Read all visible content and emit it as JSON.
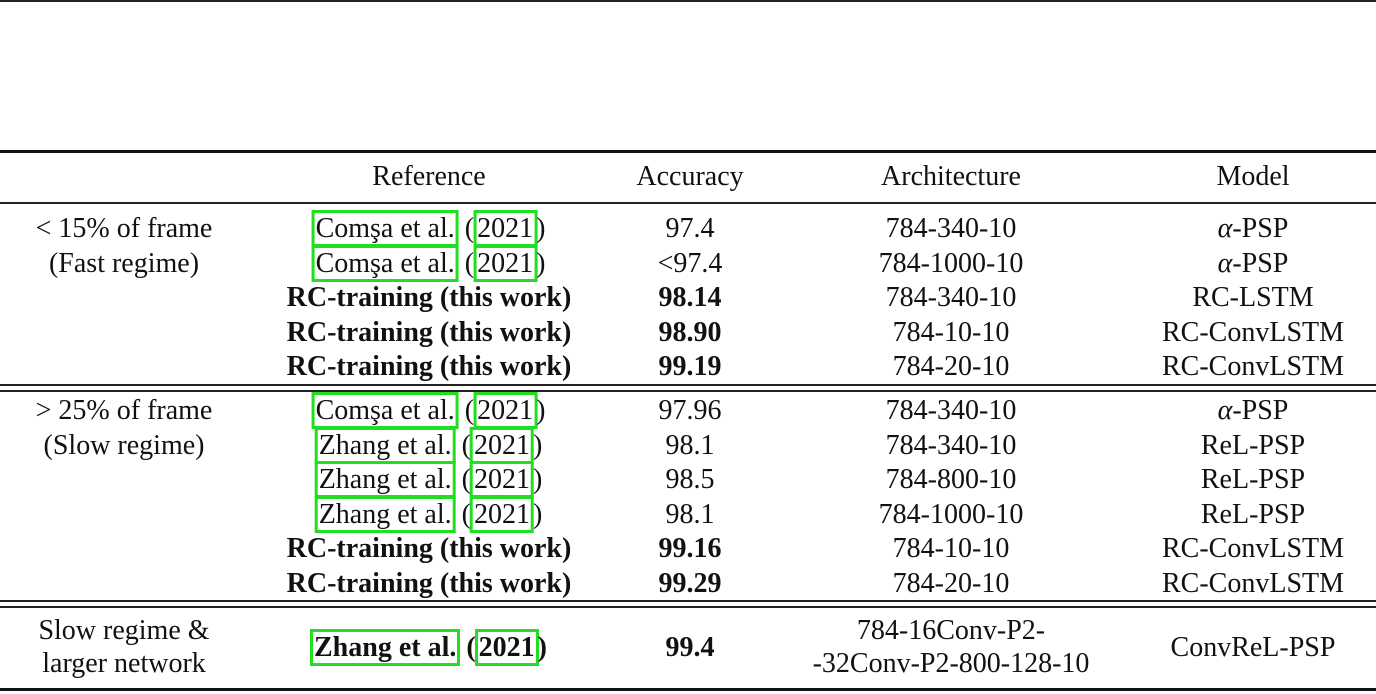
{
  "table": {
    "headers": [
      "Reference",
      "Accuracy",
      "Architecture",
      "Model"
    ],
    "groups": [
      {
        "label_lines": [
          "< 15% of frame",
          "(Fast regime)"
        ],
        "rows": [
          {
            "ref_author": "Comşa et al.",
            "ref_year": "2021",
            "is_citation": true,
            "bold": false,
            "accuracy": "97.4",
            "architecture": "784-340-10",
            "model": "α-PSP"
          },
          {
            "ref_author": "Comşa et al.",
            "ref_year": "2021",
            "is_citation": true,
            "bold": false,
            "accuracy": "<97.4",
            "architecture": "784-1000-10",
            "model": "α-PSP"
          },
          {
            "ref_text": "RC-training (this work)",
            "is_citation": false,
            "bold": true,
            "accuracy": "98.14",
            "architecture": "784-340-10",
            "model": "RC-LSTM"
          },
          {
            "ref_text": "RC-training (this work)",
            "is_citation": false,
            "bold": true,
            "accuracy": "98.90",
            "architecture": "784-10-10",
            "model": "RC-ConvLSTM"
          },
          {
            "ref_text": "RC-training (this work)",
            "is_citation": false,
            "bold": true,
            "accuracy": "99.19",
            "architecture": "784-20-10",
            "model": "RC-ConvLSTM"
          }
        ]
      },
      {
        "label_lines": [
          "> 25% of frame",
          "(Slow regime)"
        ],
        "rows": [
          {
            "ref_author": "Comşa et al.",
            "ref_year": "2021",
            "is_citation": true,
            "bold": false,
            "accuracy": "97.96",
            "architecture": "784-340-10",
            "model": "α-PSP"
          },
          {
            "ref_author": "Zhang et al.",
            "ref_year": "2021",
            "is_citation": true,
            "bold": false,
            "accuracy": "98.1",
            "architecture": "784-340-10",
            "model": "ReL-PSP"
          },
          {
            "ref_author": "Zhang et al.",
            "ref_year": "2021",
            "is_citation": true,
            "bold": false,
            "accuracy": "98.5",
            "architecture": "784-800-10",
            "model": "ReL-PSP"
          },
          {
            "ref_author": "Zhang et al.",
            "ref_year": "2021",
            "is_citation": true,
            "bold": false,
            "accuracy": "98.1",
            "architecture": "784-1000-10",
            "model": "ReL-PSP"
          },
          {
            "ref_text": "RC-training (this work)",
            "is_citation": false,
            "bold": true,
            "accuracy": "99.16",
            "architecture": "784-10-10",
            "model": "RC-ConvLSTM"
          },
          {
            "ref_text": "RC-training (this work)",
            "is_citation": false,
            "bold": true,
            "accuracy": "99.29",
            "architecture": "784-20-10",
            "model": "RC-ConvLSTM"
          }
        ]
      },
      {
        "label_lines": [
          "Slow regime &",
          "larger network"
        ],
        "rows": [
          {
            "ref_author": "Zhang et al.",
            "ref_year": "2021",
            "is_citation": true,
            "bold": true,
            "accuracy": "99.4",
            "architecture_lines": [
              "784-16Conv-P2-",
              "-32Conv-P2-800-128-10"
            ],
            "model": "ConvReL-PSP"
          }
        ]
      }
    ]
  },
  "colors": {
    "citation_box": "#22dd22",
    "rule": "#111111"
  }
}
